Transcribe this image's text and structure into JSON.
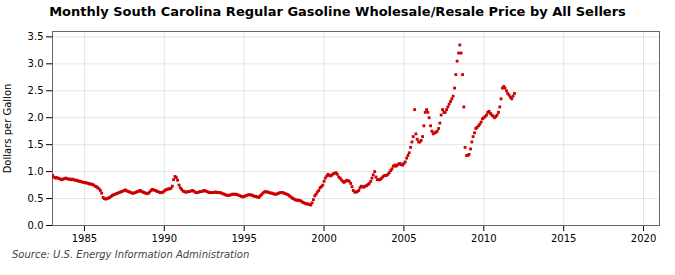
{
  "chart_data": {
    "type": "scatter",
    "title": "Monthly South Carolina Regular Gasoline Wholesale/Resale Price by All Sellers",
    "ylabel": "Dollars per Gallon",
    "source": "Source: U.S. Energy Information Administration",
    "color": "#cc0000",
    "marker": "square",
    "grid": true,
    "xlim": [
      1983,
      2021
    ],
    "ylim": [
      0.0,
      3.6
    ],
    "xticks": [
      1985,
      1990,
      1995,
      2000,
      2005,
      2010,
      2015,
      2020
    ],
    "yticks": [
      {
        "value": 0.0,
        "label": "0.0"
      },
      0.5,
      {
        "value": 1.0,
        "label": "1.0"
      },
      1.5,
      {
        "value": 2.0,
        "label": "2.0"
      },
      2.5,
      {
        "value": 3.0,
        "label": "3.0"
      },
      3.5
    ],
    "x": [
      1983.0,
      1983.08,
      1983.17,
      1983.25,
      1983.33,
      1983.42,
      1983.5,
      1983.58,
      1983.67,
      1983.75,
      1983.83,
      1983.92,
      1984.0,
      1984.08,
      1984.17,
      1984.25,
      1984.33,
      1984.42,
      1984.5,
      1984.58,
      1984.67,
      1984.75,
      1984.83,
      1984.92,
      1985.0,
      1985.08,
      1985.17,
      1985.25,
      1985.33,
      1985.42,
      1985.5,
      1985.58,
      1985.67,
      1985.75,
      1985.83,
      1985.92,
      1986.0,
      1986.08,
      1986.17,
      1986.25,
      1986.33,
      1986.42,
      1986.5,
      1986.58,
      1986.67,
      1986.75,
      1986.83,
      1986.92,
      1987.0,
      1987.08,
      1987.17,
      1987.25,
      1987.33,
      1987.42,
      1987.5,
      1987.58,
      1987.67,
      1987.75,
      1987.83,
      1987.92,
      1988.0,
      1988.08,
      1988.17,
      1988.25,
      1988.33,
      1988.42,
      1988.5,
      1988.58,
      1988.67,
      1988.75,
      1988.83,
      1988.92,
      1989.0,
      1989.08,
      1989.17,
      1989.25,
      1989.33,
      1989.42,
      1989.5,
      1989.58,
      1989.67,
      1989.75,
      1989.83,
      1989.92,
      1990.0,
      1990.08,
      1990.17,
      1990.25,
      1990.33,
      1990.42,
      1990.5,
      1990.58,
      1990.67,
      1990.75,
      1990.83,
      1990.92,
      1991.0,
      1991.08,
      1991.17,
      1991.25,
      1991.33,
      1991.42,
      1991.5,
      1991.58,
      1991.67,
      1991.75,
      1991.83,
      1991.92,
      1992.0,
      1992.08,
      1992.17,
      1992.25,
      1992.33,
      1992.42,
      1992.5,
      1992.58,
      1992.67,
      1992.75,
      1992.83,
      1992.92,
      1993.0,
      1993.08,
      1993.17,
      1993.25,
      1993.33,
      1993.42,
      1993.5,
      1993.58,
      1993.67,
      1993.75,
      1993.83,
      1993.92,
      1994.0,
      1994.08,
      1994.17,
      1994.25,
      1994.33,
      1994.42,
      1994.5,
      1994.58,
      1994.67,
      1994.75,
      1994.83,
      1994.92,
      1995.0,
      1995.08,
      1995.17,
      1995.25,
      1995.33,
      1995.42,
      1995.5,
      1995.58,
      1995.67,
      1995.75,
      1995.83,
      1995.92,
      1996.0,
      1996.08,
      1996.17,
      1996.25,
      1996.33,
      1996.42,
      1996.5,
      1996.58,
      1996.67,
      1996.75,
      1996.83,
      1996.92,
      1997.0,
      1997.08,
      1997.17,
      1997.25,
      1997.33,
      1997.42,
      1997.5,
      1997.58,
      1997.67,
      1997.75,
      1997.83,
      1997.92,
      1998.0,
      1998.08,
      1998.17,
      1998.25,
      1998.33,
      1998.42,
      1998.5,
      1998.58,
      1998.67,
      1998.75,
      1998.83,
      1998.92,
      1999.0,
      1999.08,
      1999.17,
      1999.25,
      1999.33,
      1999.42,
      1999.5,
      1999.58,
      1999.67,
      1999.75,
      1999.83,
      1999.92,
      2000.0,
      2000.08,
      2000.17,
      2000.25,
      2000.33,
      2000.42,
      2000.5,
      2000.58,
      2000.67,
      2000.75,
      2000.83,
      2000.92,
      2001.0,
      2001.08,
      2001.17,
      2001.25,
      2001.33,
      2001.42,
      2001.5,
      2001.58,
      2001.67,
      2001.75,
      2001.83,
      2001.92,
      2002.0,
      2002.08,
      2002.17,
      2002.25,
      2002.33,
      2002.42,
      2002.5,
      2002.58,
      2002.67,
      2002.75,
      2002.83,
      2002.92,
      2003.0,
      2003.08,
      2003.17,
      2003.25,
      2003.33,
      2003.42,
      2003.5,
      2003.58,
      2003.67,
      2003.75,
      2003.83,
      2003.92,
      2004.0,
      2004.08,
      2004.17,
      2004.25,
      2004.33,
      2004.42,
      2004.5,
      2004.58,
      2004.67,
      2004.75,
      2004.83,
      2004.92,
      2005.0,
      2005.08,
      2005.17,
      2005.25,
      2005.33,
      2005.42,
      2005.5,
      2005.58,
      2005.67,
      2005.75,
      2005.83,
      2005.92,
      2006.0,
      2006.08,
      2006.17,
      2006.25,
      2006.33,
      2006.42,
      2006.5,
      2006.58,
      2006.67,
      2006.75,
      2006.83,
      2006.92,
      2007.0,
      2007.08,
      2007.17,
      2007.25,
      2007.33,
      2007.42,
      2007.5,
      2007.58,
      2007.67,
      2007.75,
      2007.83,
      2007.92,
      2008.0,
      2008.08,
      2008.17,
      2008.25,
      2008.33,
      2008.42,
      2008.5,
      2008.58,
      2008.67,
      2008.75,
      2008.83,
      2008.92,
      2009.0,
      2009.08,
      2009.17,
      2009.25,
      2009.33,
      2009.42,
      2009.5,
      2009.58,
      2009.67,
      2009.75,
      2009.83,
      2009.92,
      2010.0,
      2010.08,
      2010.17,
      2010.25,
      2010.33,
      2010.42,
      2010.5,
      2010.58,
      2010.67,
      2010.75,
      2010.83,
      2010.92,
      2011.0,
      2011.08,
      2011.17,
      2011.25,
      2011.33,
      2011.42,
      2011.5,
      2011.58,
      2011.67,
      2011.75,
      2011.83,
      2011.92
    ],
    "values": [
      0.93,
      0.9,
      0.88,
      0.89,
      0.88,
      0.87,
      0.86,
      0.85,
      0.86,
      0.87,
      0.88,
      0.87,
      0.86,
      0.86,
      0.85,
      0.86,
      0.85,
      0.84,
      0.84,
      0.83,
      0.82,
      0.82,
      0.81,
      0.8,
      0.8,
      0.79,
      0.79,
      0.78,
      0.77,
      0.77,
      0.76,
      0.75,
      0.73,
      0.72,
      0.7,
      0.68,
      0.65,
      0.6,
      0.52,
      0.5,
      0.49,
      0.5,
      0.51,
      0.52,
      0.54,
      0.56,
      0.57,
      0.58,
      0.59,
      0.6,
      0.61,
      0.62,
      0.63,
      0.64,
      0.65,
      0.66,
      0.64,
      0.63,
      0.62,
      0.61,
      0.6,
      0.6,
      0.61,
      0.62,
      0.63,
      0.64,
      0.65,
      0.63,
      0.62,
      0.61,
      0.6,
      0.59,
      0.6,
      0.62,
      0.65,
      0.67,
      0.66,
      0.65,
      0.64,
      0.63,
      0.62,
      0.61,
      0.61,
      0.62,
      0.64,
      0.66,
      0.67,
      0.68,
      0.68,
      0.69,
      0.73,
      0.85,
      0.91,
      0.89,
      0.84,
      0.75,
      0.7,
      0.67,
      0.64,
      0.63,
      0.62,
      0.62,
      0.63,
      0.63,
      0.64,
      0.65,
      0.64,
      0.62,
      0.61,
      0.61,
      0.62,
      0.63,
      0.63,
      0.64,
      0.65,
      0.64,
      0.63,
      0.62,
      0.61,
      0.61,
      0.61,
      0.61,
      0.62,
      0.62,
      0.61,
      0.61,
      0.61,
      0.6,
      0.59,
      0.58,
      0.57,
      0.56,
      0.56,
      0.56,
      0.57,
      0.58,
      0.58,
      0.58,
      0.58,
      0.57,
      0.56,
      0.55,
      0.54,
      0.53,
      0.54,
      0.55,
      0.56,
      0.57,
      0.57,
      0.57,
      0.56,
      0.55,
      0.54,
      0.54,
      0.53,
      0.52,
      0.55,
      0.57,
      0.6,
      0.62,
      0.63,
      0.62,
      0.62,
      0.61,
      0.6,
      0.6,
      0.59,
      0.58,
      0.58,
      0.59,
      0.6,
      0.61,
      0.61,
      0.61,
      0.6,
      0.59,
      0.58,
      0.57,
      0.55,
      0.53,
      0.51,
      0.5,
      0.48,
      0.47,
      0.47,
      0.47,
      0.46,
      0.45,
      0.43,
      0.42,
      0.41,
      0.4,
      0.4,
      0.39,
      0.38,
      0.42,
      0.48,
      0.55,
      0.58,
      0.62,
      0.65,
      0.7,
      0.72,
      0.75,
      0.82,
      0.88,
      0.92,
      0.95,
      0.93,
      0.92,
      0.94,
      0.96,
      0.97,
      0.98,
      0.95,
      0.9,
      0.88,
      0.85,
      0.82,
      0.8,
      0.82,
      0.84,
      0.83,
      0.82,
      0.78,
      0.72,
      0.65,
      0.62,
      0.62,
      0.63,
      0.65,
      0.7,
      0.73,
      0.72,
      0.71,
      0.73,
      0.74,
      0.76,
      0.78,
      0.82,
      0.88,
      0.94,
      1.0,
      0.9,
      0.85,
      0.85,
      0.85,
      0.87,
      0.9,
      0.92,
      0.93,
      0.93,
      0.95,
      0.98,
      1.02,
      1.05,
      1.1,
      1.12,
      1.1,
      1.12,
      1.14,
      1.15,
      1.13,
      1.12,
      1.15,
      1.18,
      1.25,
      1.3,
      1.35,
      1.45,
      1.55,
      1.65,
      2.15,
      1.7,
      1.6,
      1.55,
      1.55,
      1.58,
      1.65,
      1.85,
      2.1,
      2.15,
      2.1,
      2.0,
      1.85,
      1.75,
      1.7,
      1.72,
      1.73,
      1.75,
      1.8,
      1.9,
      2.05,
      2.15,
      2.1,
      2.1,
      2.15,
      2.2,
      2.25,
      2.3,
      2.35,
      2.4,
      2.55,
      2.8,
      3.05,
      3.2,
      3.35,
      3.2,
      2.8,
      2.2,
      1.45,
      1.3,
      1.3,
      1.32,
      1.42,
      1.55,
      1.65,
      1.72,
      1.8,
      1.82,
      1.85,
      1.88,
      1.92,
      1.98,
      2.0,
      2.02,
      2.05,
      2.1,
      2.12,
      2.08,
      2.05,
      2.03,
      2.0,
      2.02,
      2.05,
      2.1,
      2.2,
      2.35,
      2.55,
      2.58,
      2.55,
      2.5,
      2.45,
      2.42,
      2.38,
      2.35,
      2.4,
      2.45
    ]
  }
}
